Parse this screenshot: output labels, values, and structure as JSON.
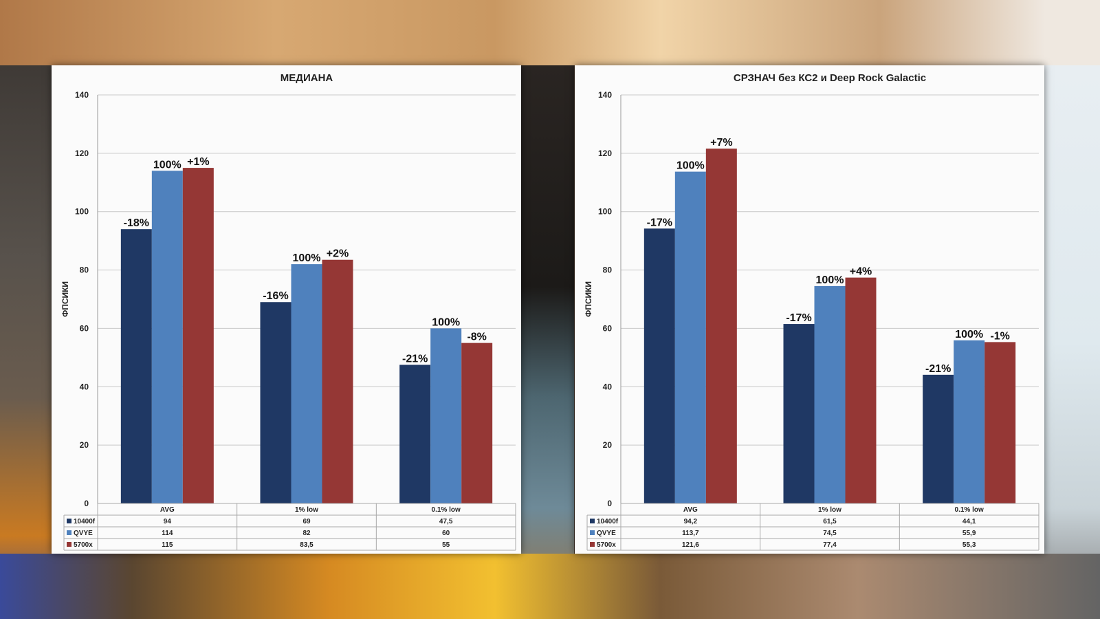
{
  "colors": {
    "series1": "#1f3864",
    "series2": "#4f81bd",
    "series3": "#953735"
  },
  "chart_data": [
    {
      "type": "bar",
      "title": "МЕДИАНА",
      "ylabel": "ФПСИКИ",
      "xlabel": "",
      "ylim": [
        0,
        140
      ],
      "yticks": [
        0,
        20,
        40,
        60,
        80,
        100,
        120,
        140
      ],
      "grid": true,
      "legend": "data table below chart",
      "categories": [
        "AVG",
        "1% low",
        "0.1% low"
      ],
      "series": [
        {
          "name": "10400f",
          "values": [
            94,
            69,
            47.5
          ],
          "table_values": [
            "94",
            "69",
            "47,5"
          ],
          "labels": [
            "-18%",
            "-16%",
            "-21%"
          ]
        },
        {
          "name": "QVYE",
          "values": [
            114,
            82,
            60
          ],
          "table_values": [
            "114",
            "82",
            "60"
          ],
          "labels": [
            "100%",
            "100%",
            "100%"
          ]
        },
        {
          "name": "5700x",
          "values": [
            115,
            83.5,
            55
          ],
          "table_values": [
            "115",
            "83,5",
            "55"
          ],
          "labels": [
            "+1%",
            "+2%",
            "-8%"
          ]
        }
      ]
    },
    {
      "type": "bar",
      "title": "СРЗНАЧ без КС2 и Deep Rock Galactic",
      "ylabel": "ФПСИКИ",
      "xlabel": "",
      "ylim": [
        0,
        140
      ],
      "yticks": [
        0,
        20,
        40,
        60,
        80,
        100,
        120,
        140
      ],
      "grid": true,
      "legend": "data table below chart",
      "categories": [
        "AVG",
        "1% low",
        "0.1% low"
      ],
      "series": [
        {
          "name": "10400f",
          "values": [
            94.2,
            61.5,
            44.1
          ],
          "table_values": [
            "94,2",
            "61,5",
            "44,1"
          ],
          "labels": [
            "-17%",
            "-17%",
            "-21%"
          ]
        },
        {
          "name": "QVYE",
          "values": [
            113.7,
            74.5,
            55.9
          ],
          "table_values": [
            "113,7",
            "74,5",
            "55,9"
          ],
          "labels": [
            "100%",
            "100%",
            "100%"
          ]
        },
        {
          "name": "5700x",
          "values": [
            121.6,
            77.4,
            55.3
          ],
          "table_values": [
            "121,6",
            "77,4",
            "55,3"
          ],
          "labels": [
            "+7%",
            "+4%",
            "-1%"
          ]
        }
      ]
    }
  ]
}
